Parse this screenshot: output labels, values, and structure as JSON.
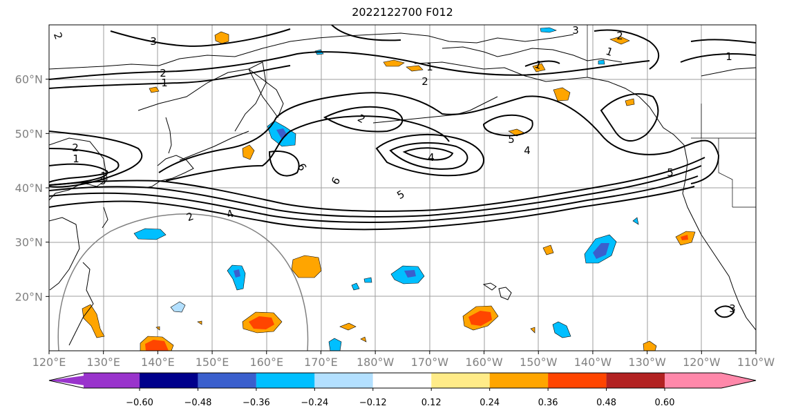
{
  "title": "2022122700 F012",
  "map": {
    "lon_labels": [
      "120°E",
      "130°E",
      "140°E",
      "150°E",
      "160°E",
      "170°E",
      "180°W",
      "170°W",
      "160°W",
      "150°W",
      "140°W",
      "130°W",
      "120°W",
      "110°W"
    ],
    "lat_labels": [
      "60°N",
      "50°N",
      "40°N",
      "30°N",
      "20°N"
    ],
    "extent": {
      "lon": [
        120,
        250
      ],
      "lat": [
        10,
        70
      ]
    },
    "grid": true,
    "coastlines": true
  },
  "contour_labels": [
    "2",
    "3",
    "3",
    "2",
    "1",
    "2",
    "1",
    "1",
    "2",
    "1",
    "1",
    "2",
    "2",
    "1",
    "5",
    "6",
    "4",
    "6",
    "5",
    "5",
    "4",
    "5",
    "2",
    "4",
    "1",
    "3",
    "5",
    "1"
  ],
  "colorbar": {
    "ticks": [
      "−0.60",
      "−0.48",
      "−0.36",
      "−0.24",
      "−0.12",
      "0.12",
      "0.24",
      "0.36",
      "0.48",
      "0.60"
    ],
    "colors": [
      "#9933cc",
      "#00008b",
      "#3a5fcd",
      "#00bfff",
      "#b3e0ff",
      "#ffffff",
      "#ffeb88",
      "#ffa500",
      "#ff4500",
      "#b22222",
      "#ff88aa"
    ],
    "extend": "both"
  }
}
